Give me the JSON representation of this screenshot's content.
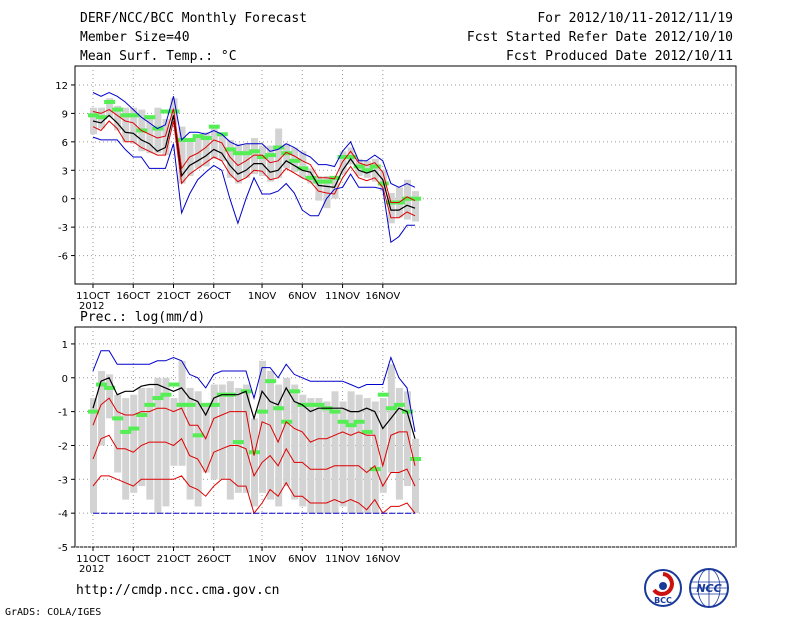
{
  "header": {
    "title": "DERF/NCC/BCC Monthly Forecast",
    "member": "Member Size=40",
    "variable": "Mean Surf. Temp.: °C",
    "period": "For 2012/10/11-2012/11/19",
    "started": "Fcst Started Refer Date 2012/10/10",
    "produced": "Fcst Produced Date 2012/10/11"
  },
  "footer": {
    "url": "http://cmdp.ncc.cma.gov.cn",
    "grads": "GrADS: COLA/IGES",
    "bcc_logo_text": "BCC",
    "ncc_logo_text": "NCC"
  },
  "colors": {
    "grid": "#999999",
    "box": "#d3d3d3",
    "member": "#55ee55",
    "mean": "#000000",
    "spread": "#dd0000",
    "extreme": "#0000cc"
  },
  "chart_data": [
    {
      "type": "line",
      "title": "Mean Surf. Temp.: °C",
      "x_start_label": "2012",
      "x_ticks": [
        "11OCT",
        "16OCT",
        "21OCT",
        "26OCT",
        "1NOV",
        "6NOV",
        "11NOV",
        "16NOV"
      ],
      "x_tick_days": [
        0,
        5,
        10,
        15,
        21,
        26,
        31,
        36
      ],
      "ylim": [
        -9,
        14
      ],
      "yticks": [
        -6,
        -3,
        0,
        3,
        6,
        9,
        12
      ],
      "series": [
        {
          "name": "mean",
          "values": [
            8.2,
            8.0,
            8.8,
            8.0,
            7.0,
            6.9,
            6.2,
            5.8,
            5.0,
            5.4,
            8.8,
            2.4,
            3.5,
            4.0,
            4.5,
            5.2,
            4.8,
            3.5,
            2.6,
            3.0,
            3.7,
            3.7,
            2.8,
            3.0,
            4.0,
            3.5,
            3.0,
            2.8,
            1.4,
            1.3,
            1.2,
            3.0,
            4.2,
            3.0,
            2.7,
            3.0,
            2.0,
            -1.2,
            -1.2,
            -0.7,
            -1.0
          ]
        },
        {
          "name": "plus_sd",
          "values": [
            9.2,
            9.0,
            9.4,
            8.8,
            8.2,
            8.0,
            7.2,
            6.8,
            6.4,
            6.6,
            9.5,
            3.2,
            4.4,
            4.8,
            5.4,
            6.2,
            5.9,
            4.4,
            3.5,
            4.0,
            4.6,
            4.6,
            3.8,
            4.0,
            4.9,
            4.5,
            4.0,
            3.6,
            2.2,
            2.2,
            2.1,
            3.9,
            5.0,
            3.8,
            3.5,
            3.8,
            2.8,
            -0.4,
            -0.4,
            0.2,
            -0.2
          ]
        },
        {
          "name": "minus_sd",
          "values": [
            7.6,
            7.2,
            8.2,
            7.4,
            6.0,
            6.0,
            5.4,
            5.0,
            4.6,
            4.6,
            8.2,
            1.6,
            2.6,
            3.2,
            3.8,
            4.4,
            4.0,
            2.6,
            1.8,
            2.2,
            3.0,
            2.9,
            2.0,
            2.2,
            3.2,
            2.7,
            2.2,
            1.8,
            0.8,
            0.6,
            0.5,
            2.2,
            3.4,
            2.2,
            1.9,
            2.2,
            1.2,
            -2.0,
            -2.0,
            -1.4,
            -1.8
          ]
        },
        {
          "name": "max",
          "values": [
            11.2,
            10.8,
            11.2,
            10.8,
            10.2,
            9.4,
            8.6,
            8.0,
            7.4,
            7.8,
            10.8,
            6.2,
            7.0,
            7.0,
            6.8,
            7.2,
            6.8,
            6.0,
            5.6,
            5.8,
            5.8,
            5.8,
            5.0,
            5.2,
            5.8,
            5.4,
            4.8,
            4.4,
            3.6,
            3.6,
            3.4,
            5.0,
            6.0,
            4.0,
            4.0,
            4.6,
            4.0,
            1.6,
            1.2,
            1.6,
            1.2
          ]
        },
        {
          "name": "min",
          "values": [
            6.5,
            6.2,
            6.2,
            6.2,
            5.2,
            4.4,
            4.4,
            3.2,
            3.2,
            3.2,
            5.8,
            -1.5,
            0.5,
            2.0,
            2.8,
            3.5,
            3.0,
            0.0,
            -2.6,
            0.0,
            2.2,
            0.5,
            0.5,
            0.8,
            1.6,
            0.6,
            -1.2,
            -1.8,
            -1.8,
            0.0,
            1.0,
            1.2,
            2.6,
            1.2,
            1.2,
            1.2,
            1.0,
            -4.6,
            -4.0,
            -2.8,
            -2.8
          ]
        }
      ],
      "boxes_low": [
        6.8,
        7.4,
        8.6,
        7.2,
        6.0,
        5.8,
        5.0,
        4.8,
        4.8,
        4.6,
        7.8,
        1.6,
        2.4,
        3.2,
        3.4,
        4.2,
        4.0,
        2.2,
        1.6,
        2.2,
        2.6,
        2.4,
        1.8,
        2.2,
        3.2,
        2.8,
        2.2,
        1.6,
        -0.2,
        -1.0,
        0.0,
        2.6,
        3.6,
        2.4,
        2.2,
        1.8,
        0.8,
        -2.6,
        -2.0,
        -2.2,
        -2.4
      ],
      "boxes_high": [
        9.6,
        9.6,
        10.6,
        9.8,
        9.6,
        9.6,
        9.4,
        8.8,
        9.6,
        8.4,
        10.6,
        7.6,
        6.2,
        6.4,
        7.0,
        7.4,
        6.8,
        6.2,
        5.8,
        5.8,
        6.4,
        5.6,
        5.6,
        7.4,
        5.8,
        5.4,
        5.0,
        3.2,
        2.4,
        2.4,
        2.0,
        5.0,
        5.4,
        4.2,
        4.0,
        4.2,
        3.0,
        0.6,
        1.2,
        2.0,
        0.8
      ],
      "member_marks": [
        8.8,
        8.6,
        10.2,
        9.4,
        8.8,
        8.8,
        7.2,
        8.6,
        7.4,
        9.2,
        9.2,
        6.2,
        6.2,
        6.6,
        6.4,
        7.6,
        6.8,
        5.2,
        4.8,
        4.8,
        5.0,
        4.4,
        4.6,
        5.4,
        4.8,
        4.0,
        3.2,
        2.2,
        1.8,
        1.8,
        2.2,
        4.4,
        4.4,
        3.4,
        3.0,
        3.4,
        1.6,
        -0.4,
        -0.4,
        0.0,
        0.0
      ]
    },
    {
      "type": "line",
      "title": "Prec.: log(mm/d)",
      "x_start_label": "2012",
      "x_ticks": [
        "11OCT",
        "16OCT",
        "21OCT",
        "26OCT",
        "1NOV",
        "6NOV",
        "11NOV",
        "16NOV"
      ],
      "x_tick_days": [
        0,
        5,
        10,
        15,
        21,
        26,
        31,
        36
      ],
      "ylim": [
        -5,
        1.5
      ],
      "yticks": [
        -5,
        -4,
        -3,
        -2,
        -1,
        0,
        1
      ],
      "series": [
        {
          "name": "mean",
          "values": [
            -0.9,
            -0.1,
            0.0,
            -0.5,
            -0.4,
            -0.4,
            -0.25,
            -0.2,
            -0.2,
            -0.3,
            -0.4,
            -0.3,
            -0.6,
            -0.7,
            -1.1,
            -0.6,
            -0.5,
            -0.5,
            -0.5,
            -0.4,
            -1.2,
            -0.4,
            -0.7,
            -0.8,
            -0.3,
            -0.7,
            -0.8,
            -1.0,
            -0.9,
            -0.9,
            -0.9,
            -0.9,
            -1.0,
            -1.0,
            -0.9,
            -1.0,
            -1.5,
            -1.2,
            -0.9,
            -1.0,
            -1.8
          ]
        },
        {
          "name": "plus_sd",
          "values": [
            -1.4,
            -0.8,
            -0.6,
            -1.0,
            -1.1,
            -1.1,
            -1.0,
            -1.0,
            -0.9,
            -0.9,
            -1.0,
            -0.9,
            -1.4,
            -1.4,
            -1.8,
            -1.2,
            -1.1,
            -1.0,
            -1.0,
            -1.0,
            -2.3,
            -1.3,
            -1.4,
            -1.9,
            -1.3,
            -1.5,
            -1.6,
            -1.9,
            -1.8,
            -1.8,
            -1.7,
            -1.6,
            -1.7,
            -1.6,
            -1.7,
            -1.7,
            -2.6,
            -1.7,
            -1.6,
            -1.6,
            -2.6
          ]
        },
        {
          "name": "minus_sd",
          "values": [
            -2.4,
            -1.8,
            -1.7,
            -2.1,
            -2.1,
            -2.2,
            -2.0,
            -1.9,
            -1.9,
            -1.9,
            -2.0,
            -1.8,
            -2.3,
            -2.4,
            -2.8,
            -2.2,
            -2.1,
            -2.0,
            -2.0,
            -2.1,
            -2.9,
            -2.5,
            -2.3,
            -2.6,
            -2.1,
            -2.5,
            -2.5,
            -2.7,
            -2.7,
            -2.7,
            -2.6,
            -2.6,
            -2.6,
            -2.6,
            -2.8,
            -2.6,
            -3.2,
            -2.8,
            -2.8,
            -2.7,
            -3.2
          ]
        },
        {
          "name": "lower_red",
          "values": [
            -3.2,
            -2.9,
            -2.9,
            -3.0,
            -3.1,
            -3.2,
            -3.0,
            -3.0,
            -3.0,
            -3.0,
            -3.0,
            -2.9,
            -3.2,
            -3.3,
            -3.5,
            -3.2,
            -3.0,
            -3.0,
            -3.2,
            -3.2,
            -4.0,
            -3.7,
            -3.3,
            -3.5,
            -3.1,
            -3.5,
            -3.5,
            -3.7,
            -3.7,
            -3.7,
            -3.6,
            -3.7,
            -3.6,
            -3.7,
            -3.9,
            -3.6,
            -4.0,
            -3.8,
            -3.8,
            -3.7,
            -4.0
          ]
        },
        {
          "name": "max",
          "values": [
            0.2,
            0.8,
            0.8,
            0.4,
            0.4,
            0.4,
            0.4,
            0.4,
            0.5,
            0.5,
            0.6,
            0.5,
            0.1,
            0.0,
            -0.3,
            0.1,
            0.2,
            0.2,
            0.2,
            0.2,
            -0.6,
            0.3,
            0.3,
            0.0,
            0.4,
            0.1,
            0.0,
            -0.1,
            -0.1,
            -0.1,
            -0.1,
            -0.1,
            -0.2,
            -0.3,
            -0.2,
            -0.2,
            -0.2,
            0.6,
            0.0,
            -0.3,
            -1.6
          ]
        },
        {
          "name": "min",
          "values": [
            -4.0,
            -4.0,
            -4.0,
            -4.0,
            -4.0,
            -4.0,
            -4.0,
            -4.0,
            -4.0,
            -4.0,
            -4.0,
            -4.0,
            -4.0,
            -4.0,
            -4.0,
            -4.0,
            -4.0,
            -4.0,
            -4.0,
            -4.0,
            -4.0,
            -4.0,
            -4.0,
            -4.0,
            -4.0,
            -4.0,
            -4.0,
            -4.0,
            -4.0,
            -4.0,
            -4.0,
            -4.0,
            -4.0,
            -4.0,
            -4.0,
            -4.0,
            -4.0,
            -4.0,
            -4.0,
            -4.0,
            -4.0
          ]
        }
      ],
      "boxes_low": [
        -4.0,
        -2.0,
        -1.2,
        -2.8,
        -3.6,
        -3.4,
        -3.2,
        -3.6,
        -4.0,
        -3.8,
        -2.6,
        -2.6,
        -3.6,
        -3.8,
        -2.8,
        -3.0,
        -3.0,
        -3.6,
        -3.4,
        -3.4,
        -3.8,
        -3.4,
        -3.6,
        -3.8,
        -3.2,
        -3.6,
        -3.8,
        -4.0,
        -4.0,
        -4.0,
        -4.0,
        -3.8,
        -4.0,
        -4.0,
        -4.0,
        -4.0,
        -3.4,
        -2.8,
        -3.6,
        -3.2,
        -4.0
      ],
      "boxes_high": [
        -0.6,
        0.2,
        0.1,
        -0.5,
        -0.6,
        -0.5,
        -0.3,
        -0.3,
        0.0,
        0.0,
        -0.6,
        0.5,
        -0.3,
        -0.4,
        -0.8,
        -0.2,
        -0.2,
        -0.1,
        -0.3,
        -0.2,
        -1.2,
        0.5,
        0.2,
        -0.2,
        0.0,
        -0.2,
        -0.5,
        -0.6,
        -0.6,
        -0.7,
        -0.4,
        -0.7,
        -0.4,
        -0.5,
        -0.6,
        -0.7,
        -0.6,
        0.4,
        -0.3,
        -0.4,
        -1.8
      ],
      "member_marks": [
        -1.0,
        -0.2,
        -0.3,
        -1.2,
        -1.6,
        -1.5,
        -1.1,
        -0.8,
        -0.6,
        -0.5,
        -0.2,
        -0.8,
        -0.8,
        -1.7,
        -0.8,
        -0.8,
        -0.5,
        -0.5,
        -1.9,
        -0.4,
        -2.2,
        -1.0,
        -0.1,
        -0.9,
        -1.3,
        -0.4,
        -0.8,
        -0.8,
        -0.8,
        -0.9,
        -1.0,
        -1.3,
        -1.4,
        -1.3,
        -1.6,
        -2.7,
        -0.5,
        -0.9,
        -0.8,
        -1.0,
        -2.4
      ]
    }
  ]
}
